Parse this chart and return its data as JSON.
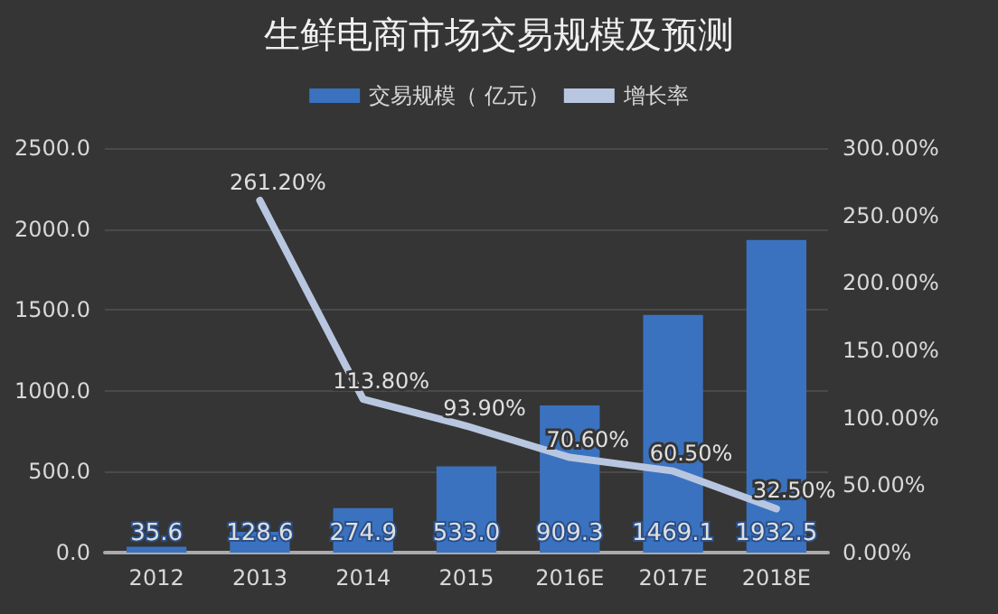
{
  "chart_data": {
    "type": "bar",
    "title": "生鲜电商市场交易规模及预测",
    "categories": [
      "2012",
      "2013",
      "2014",
      "2015",
      "2016E",
      "2017E",
      "2018E"
    ],
    "series": [
      {
        "name": "交易规模（ 亿元）",
        "type": "bar",
        "color": "#3a72c0",
        "values": [
          35.6,
          128.6,
          274.9,
          533.0,
          909.3,
          1469.1,
          1932.5
        ],
        "value_labels": [
          "35.6",
          "128.6",
          "274.9",
          "533.0",
          "909.3",
          "1469.1",
          "1932.5"
        ]
      },
      {
        "name": "增长率",
        "type": "line",
        "axis": "y2",
        "color": "#b8c6e0",
        "values": [
          null,
          261.2,
          113.8,
          93.9,
          70.6,
          60.5,
          32.5
        ],
        "value_labels": [
          null,
          "261.20%",
          "113.80%",
          "93.90%",
          "70.60%",
          "60.50%",
          "32.50%"
        ]
      }
    ],
    "ylim": [
      0,
      2500
    ],
    "yticks": [
      {
        "value": 0,
        "label": "0.0"
      },
      {
        "value": 500,
        "label": "500.0"
      },
      {
        "value": 1000,
        "label": "1000.0"
      },
      {
        "value": 1500,
        "label": "1500.0"
      },
      {
        "value": 2000,
        "label": "2000.0"
      },
      {
        "value": 2500,
        "label": "2500.0"
      }
    ],
    "y2lim": [
      0,
      300
    ],
    "y2ticks": [
      {
        "value": 0,
        "label": "0.00%"
      },
      {
        "value": 50,
        "label": "50.00%"
      },
      {
        "value": 100,
        "label": "100.00%"
      },
      {
        "value": 150,
        "label": "150.00%"
      },
      {
        "value": 200,
        "label": "200.00%"
      },
      {
        "value": 250,
        "label": "250.00%"
      },
      {
        "value": 300,
        "label": "300.00%"
      }
    ],
    "grid": "y",
    "legend": "top",
    "marker": "none",
    "line_style": "solid"
  }
}
